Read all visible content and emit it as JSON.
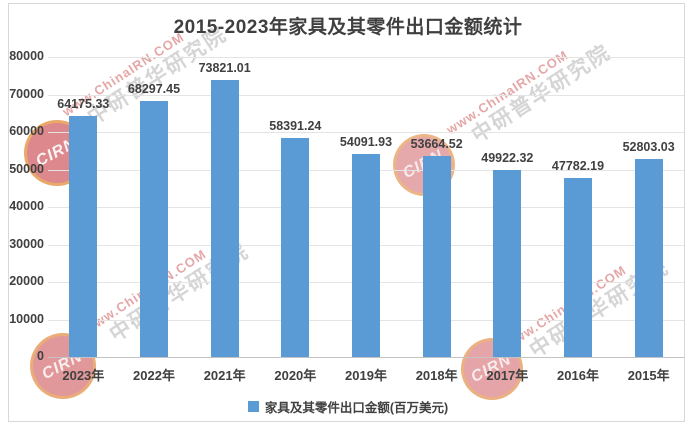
{
  "title": "2015-2023年家具及其零件出口金额统计",
  "chart_data": {
    "type": "bar",
    "title": "2015-2023年家具及其零件出口金额统计",
    "categories": [
      "2023年",
      "2022年",
      "2021年",
      "2020年",
      "2019年",
      "2018年",
      "2017年",
      "2016年",
      "2015年"
    ],
    "values": [
      64175.33,
      68297.45,
      73821.01,
      58391.24,
      54091.93,
      53664.52,
      49922.32,
      47782.19,
      52803.03
    ],
    "legend": "家具及其零件出口金额(百万美元)",
    "xlabel": "",
    "ylabel": "",
    "ylim": [
      0,
      80000
    ],
    "ytick_step": 10000,
    "grid": true,
    "legend_position": "bottom",
    "bar_color": "#5B9BD5",
    "label_color": "#404040"
  },
  "watermark": {
    "logo_text": "CIRN",
    "line1": "www.ChinaIRN.COM",
    "line2": "中研普华研究院"
  }
}
